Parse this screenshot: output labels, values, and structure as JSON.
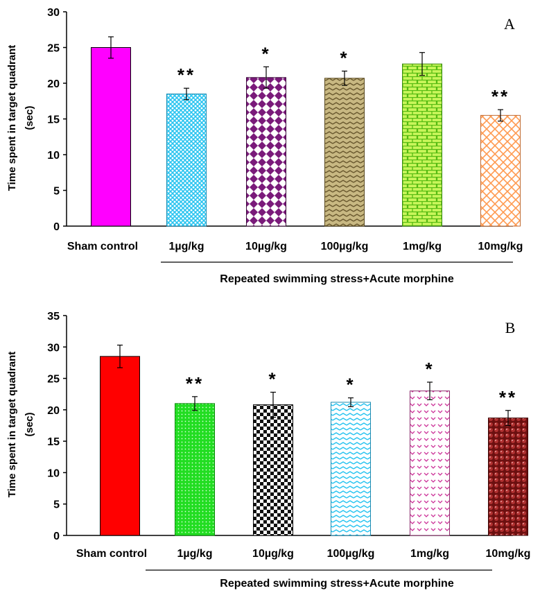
{
  "chart_data": [
    {
      "type": "bar",
      "panel_label": "A",
      "categories": [
        "Sham control",
        "1µg/kg",
        "10µg/kg",
        "100µg/kg",
        "1mg/kg",
        "10mg/kg"
      ],
      "values": [
        25.0,
        18.5,
        20.8,
        20.7,
        22.7,
        15.5
      ],
      "errors": [
        1.5,
        0.8,
        1.5,
        1.0,
        1.6,
        0.8
      ],
      "significance": [
        "",
        "**",
        "*",
        "*",
        "",
        "**"
      ],
      "ylabel_line1": "Time spent in target quadrant",
      "ylabel_line2": "(sec)",
      "group_label": "Repeated swimming stress+Acute morphine",
      "ylim": [
        0,
        30
      ],
      "yticks": [
        0,
        5,
        10,
        15,
        20,
        25,
        30
      ],
      "colors": [
        "#ff00ff",
        "#29c4f0",
        "#7a1a7a",
        "#9a8a5a",
        "#66dd22",
        "#ff9a50"
      ],
      "patterns": [
        "solid",
        "crosshatch",
        "diamonds",
        "zigzag",
        "bricks",
        "diag-cross"
      ]
    },
    {
      "type": "bar",
      "panel_label": "B",
      "categories": [
        "Sham control",
        "1µg/kg",
        "10µg/kg",
        "100µg/kg",
        "1mg/kg",
        "10mg/kg"
      ],
      "values": [
        28.5,
        21.0,
        20.8,
        21.2,
        23.0,
        18.7
      ],
      "errors": [
        1.8,
        1.1,
        2.0,
        0.7,
        1.4,
        1.2
      ],
      "significance": [
        "",
        "**",
        "*",
        "*",
        "*",
        "**"
      ],
      "ylabel_line1": "Time spent in target quadrant",
      "ylabel_line2": "(sec)",
      "group_label": "Repeated swimming stress+Acute morphine",
      "ylim": [
        0,
        35
      ],
      "yticks": [
        0,
        5,
        10,
        15,
        20,
        25,
        30,
        35
      ],
      "colors": [
        "#ff0000",
        "#22dd22",
        "#111111",
        "#29c4f0",
        "#cc3399",
        "#8b1a1a"
      ],
      "patterns": [
        "solid",
        "dots",
        "checker",
        "zigzag",
        "chevrons",
        "circles"
      ]
    }
  ]
}
